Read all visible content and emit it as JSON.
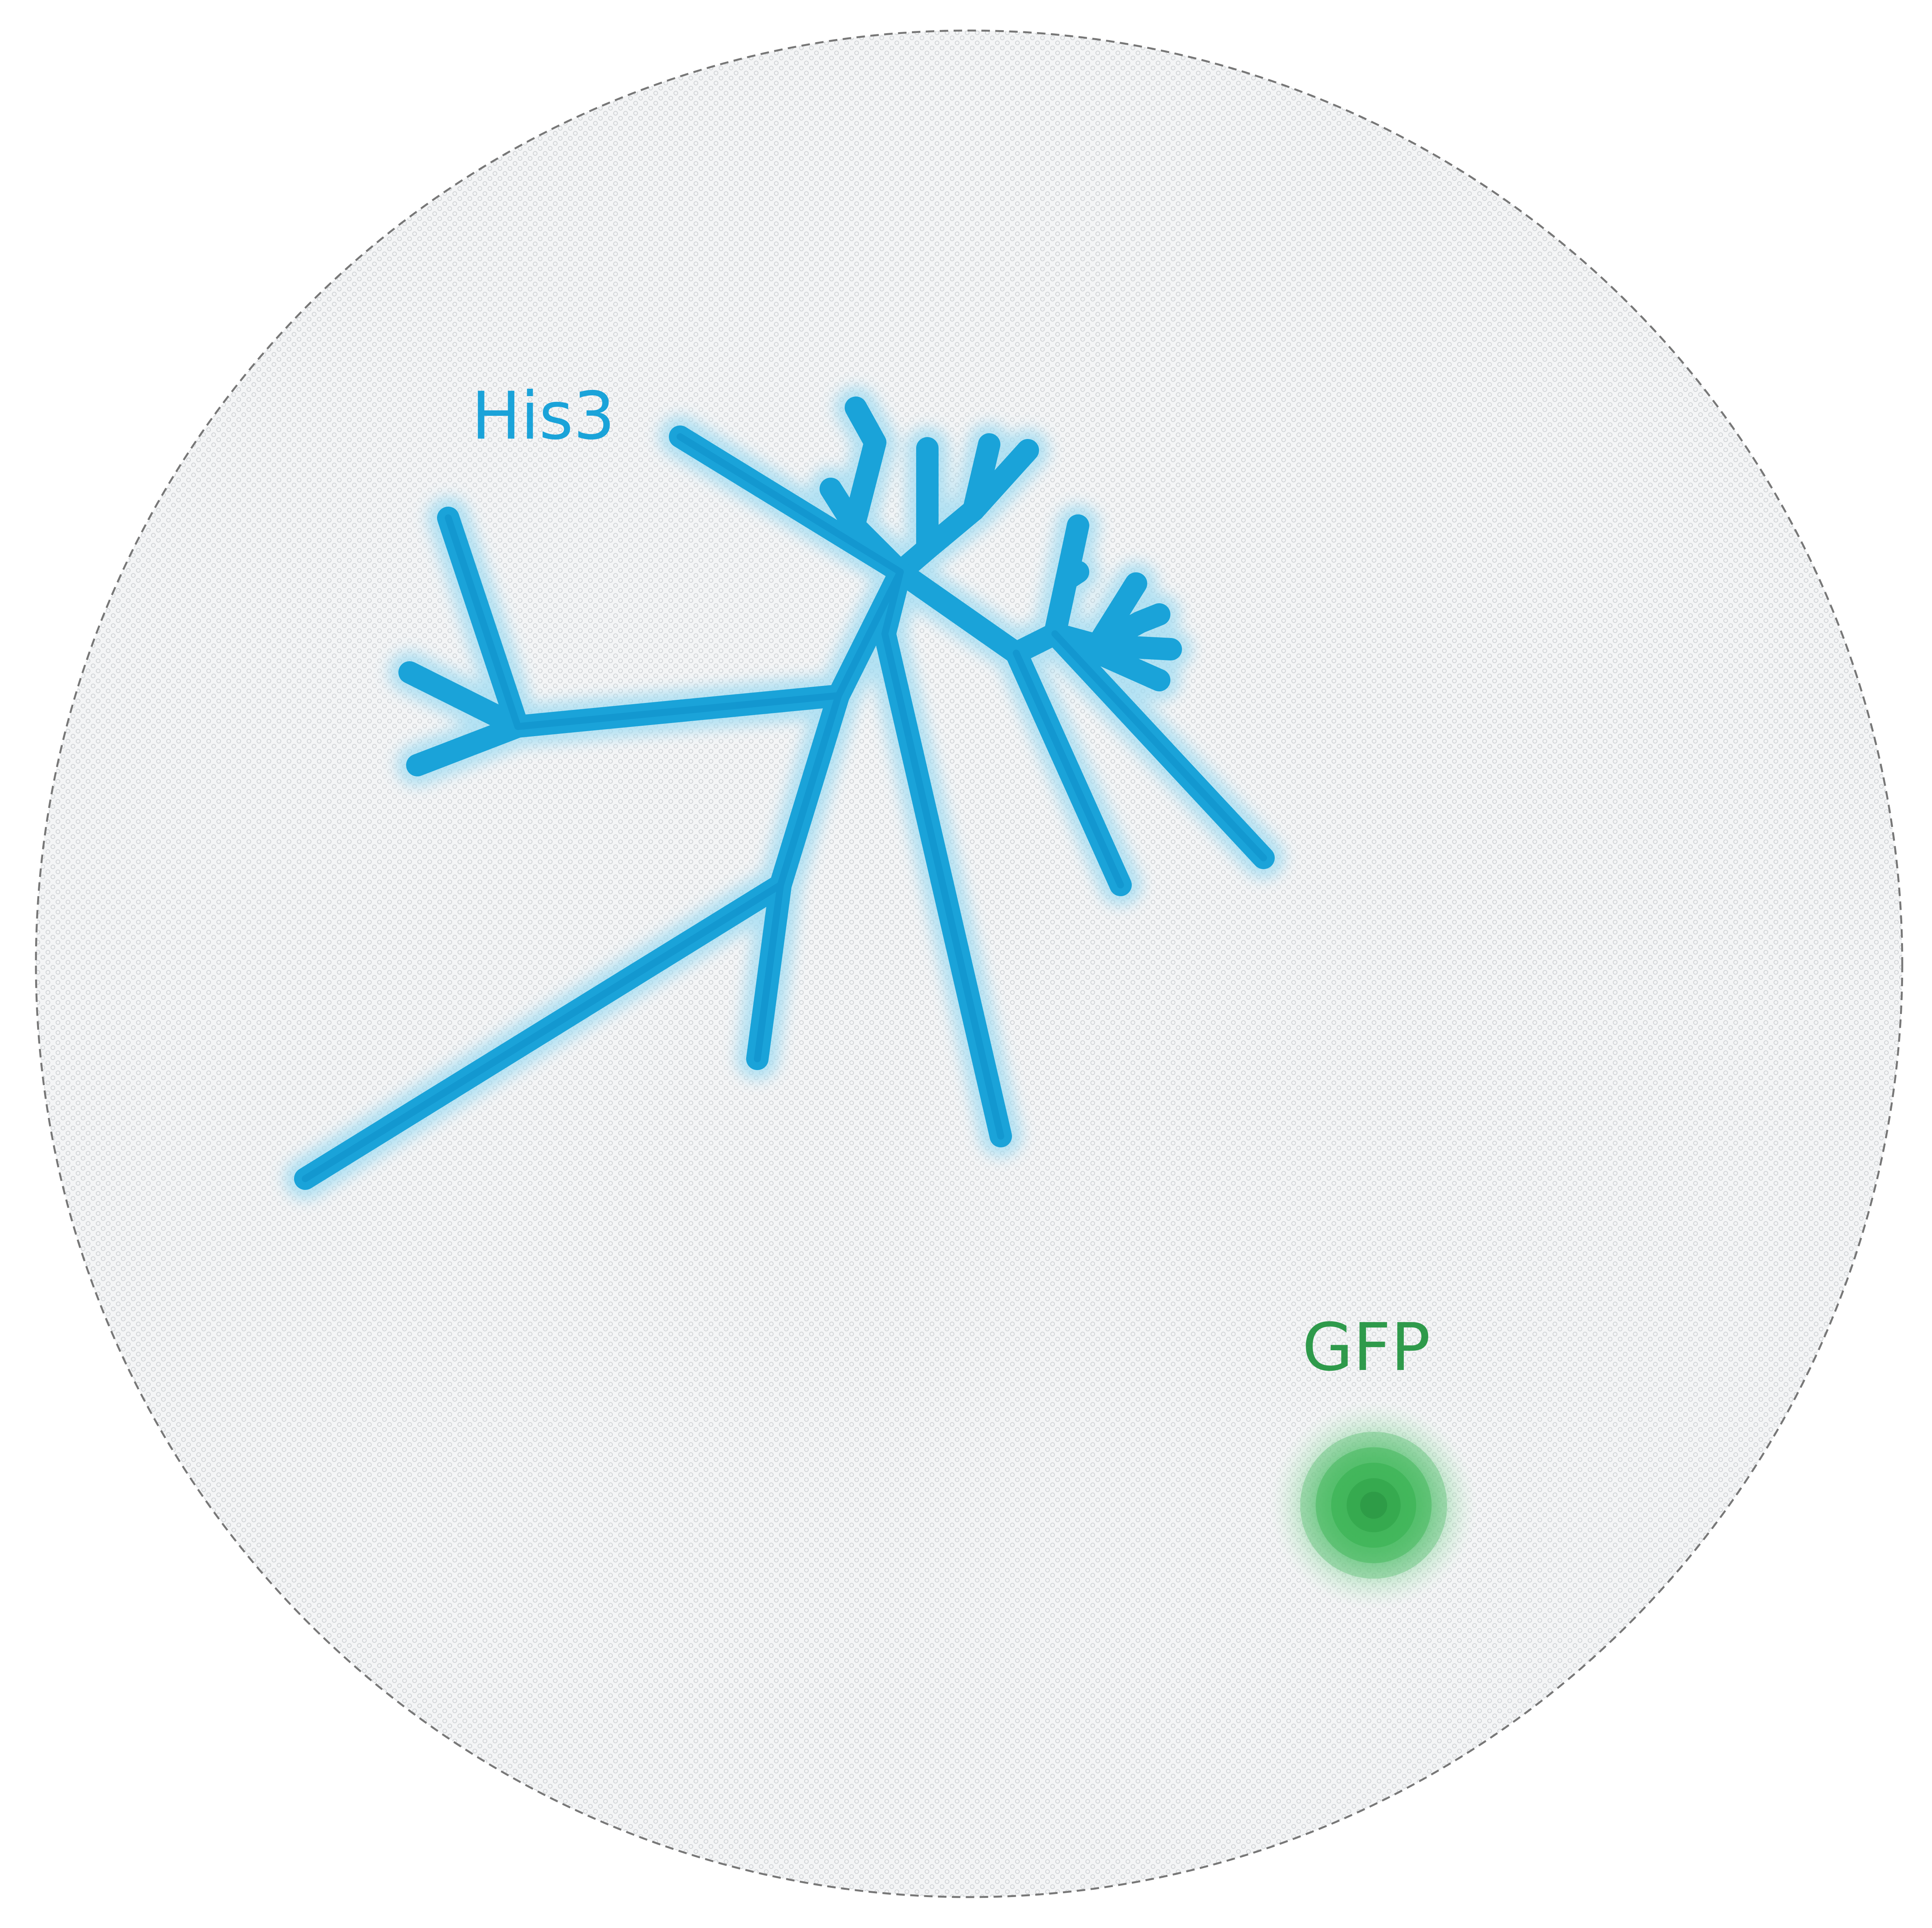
{
  "colors": {
    "background": "#ffffff",
    "plate_fill": "#f3f4f5",
    "plate_border": "#777777",
    "his3": "#1aa3d9",
    "his3_glow": "#9edcf3",
    "gfp": "#2e9a4b",
    "gfp_spot": "#2fb24f"
  },
  "labels": {
    "his3": "His3",
    "gfp": "GFP"
  }
}
